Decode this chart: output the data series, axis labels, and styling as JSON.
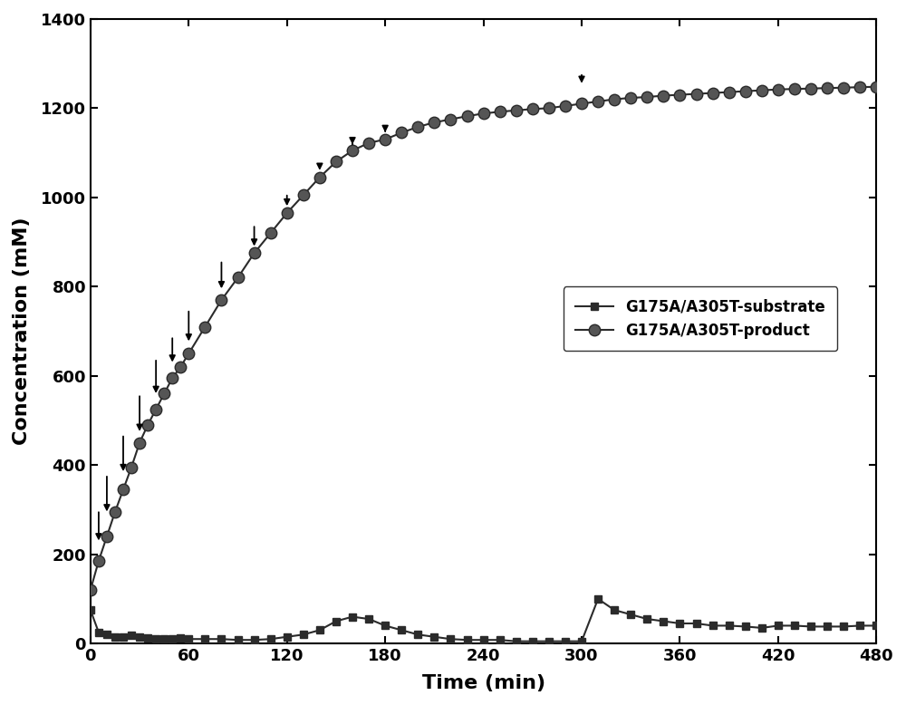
{
  "substrate_x": [
    0,
    5,
    10,
    15,
    20,
    25,
    30,
    35,
    40,
    45,
    50,
    55,
    60,
    70,
    80,
    90,
    100,
    110,
    120,
    130,
    140,
    150,
    160,
    170,
    180,
    190,
    200,
    210,
    220,
    230,
    240,
    250,
    260,
    270,
    280,
    290,
    300,
    310,
    320,
    330,
    340,
    350,
    360,
    370,
    380,
    390,
    400,
    410,
    420,
    430,
    440,
    450,
    460,
    470,
    480
  ],
  "substrate_y": [
    75,
    25,
    20,
    15,
    15,
    18,
    15,
    12,
    10,
    10,
    10,
    12,
    10,
    10,
    10,
    8,
    8,
    10,
    15,
    20,
    30,
    50,
    60,
    55,
    40,
    30,
    20,
    15,
    10,
    8,
    8,
    8,
    5,
    5,
    5,
    5,
    5,
    100,
    75,
    65,
    55,
    50,
    45,
    45,
    40,
    40,
    38,
    35,
    40,
    40,
    38,
    38,
    38,
    40,
    40
  ],
  "product_x": [
    0,
    5,
    10,
    15,
    20,
    25,
    30,
    35,
    40,
    45,
    50,
    55,
    60,
    70,
    80,
    90,
    100,
    110,
    120,
    130,
    140,
    150,
    160,
    170,
    180,
    190,
    200,
    210,
    220,
    230,
    240,
    250,
    260,
    270,
    280,
    290,
    300,
    310,
    320,
    330,
    340,
    350,
    360,
    370,
    380,
    390,
    400,
    410,
    420,
    430,
    440,
    450,
    460,
    470,
    480
  ],
  "product_y": [
    120,
    185,
    240,
    295,
    345,
    395,
    450,
    490,
    525,
    560,
    595,
    620,
    650,
    710,
    770,
    820,
    875,
    920,
    965,
    1005,
    1045,
    1080,
    1105,
    1122,
    1130,
    1145,
    1158,
    1168,
    1175,
    1182,
    1188,
    1192,
    1195,
    1198,
    1200,
    1205,
    1210,
    1215,
    1220,
    1223,
    1225,
    1228,
    1230,
    1232,
    1234,
    1236,
    1238,
    1240,
    1242,
    1243,
    1244,
    1245,
    1246,
    1247,
    1248
  ],
  "arrows_x": [
    5,
    10,
    20,
    30,
    40,
    50,
    60,
    80,
    100,
    120,
    140,
    160,
    180,
    300
  ],
  "arrows_y_top": [
    300,
    380,
    470,
    560,
    640,
    690,
    750,
    860,
    940,
    1010,
    1075,
    1125,
    1155,
    1280
  ],
  "arrows_y_bot": [
    225,
    290,
    380,
    470,
    555,
    625,
    672,
    790,
    885,
    975,
    1055,
    1113,
    1140,
    1250
  ],
  "xlabel": "Time (min)",
  "ylabel": "Concentration (mM)",
  "xlim": [
    0,
    480
  ],
  "ylim": [
    0,
    1400
  ],
  "xticks": [
    0,
    60,
    120,
    180,
    240,
    300,
    360,
    420,
    480
  ],
  "yticks": [
    0,
    200,
    400,
    600,
    800,
    1000,
    1200,
    1400
  ],
  "legend_substrate": "G175A/A305T-substrate",
  "legend_product": "G175A/A305T-product",
  "line_color": "#2b2b2b",
  "marker_color_product": "#555555",
  "bg_color": "#ffffff"
}
